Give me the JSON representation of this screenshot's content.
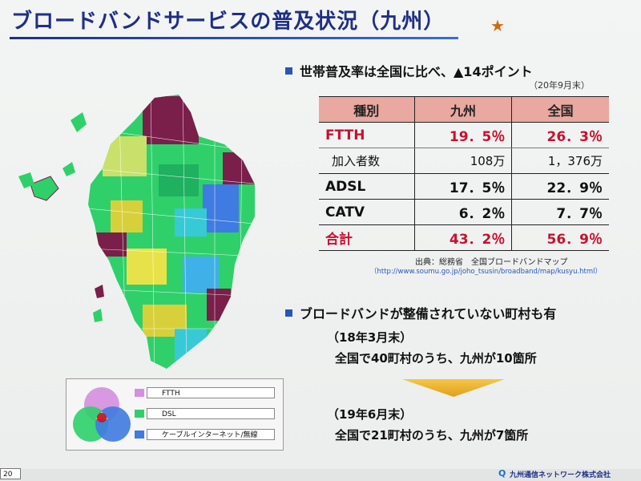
{
  "title": "ブロードバンドサービスの普及状況（九州）",
  "star_icon": "star-icon",
  "section1": {
    "heading": "世帯普及率は全国に比べ、▲14ポイント",
    "date_note": "（20年9月末）",
    "table": {
      "headers": [
        "種別",
        "九州",
        "全国"
      ],
      "rows": [
        {
          "label": "FTTH",
          "kyushu": "19．5％",
          "national": "26．3％",
          "style": "red"
        },
        {
          "label": "加入者数",
          "kyushu": "108万",
          "national": "1，376万",
          "style": "sub"
        },
        {
          "label": "ADSL",
          "kyushu": "17．5％",
          "national": "22．9％",
          "style": "normal"
        },
        {
          "label": "CATV",
          "kyushu": "6．2％",
          "national": "7．7％",
          "style": "normal"
        },
        {
          "label": "合計",
          "kyushu": "43．2％",
          "national": "56．9％",
          "style": "red"
        }
      ]
    },
    "source": "出典：総務省　全国ブロードバンドマップ",
    "url": "（http://www.soumu.go.jp/joho_tsusin/broadband/map/kusyu.html）"
  },
  "section2": {
    "heading": "ブロードバンドが整備されていない町村も有",
    "period1": "（18年3月末）",
    "text1": "全国で40町村のうち、九州が10箇所",
    "period2": "（19年6月末）",
    "text2": "全国で21町村のうち、九州が7箇所"
  },
  "legend": {
    "items": [
      {
        "label": "FTTH",
        "color": "#d58fe0"
      },
      {
        "label": "DSL",
        "color": "#2fd06a"
      },
      {
        "label": "ケーブルインターネット/無線",
        "color": "#3f7be0"
      }
    ]
  },
  "footer": {
    "page": "20",
    "company": "九州通信ネットワーク株式会社"
  },
  "colors": {
    "title": "#1f2f86",
    "accent_red": "#c8102e",
    "table_header": "#e9a8a0",
    "arrow": "#f0b020"
  }
}
